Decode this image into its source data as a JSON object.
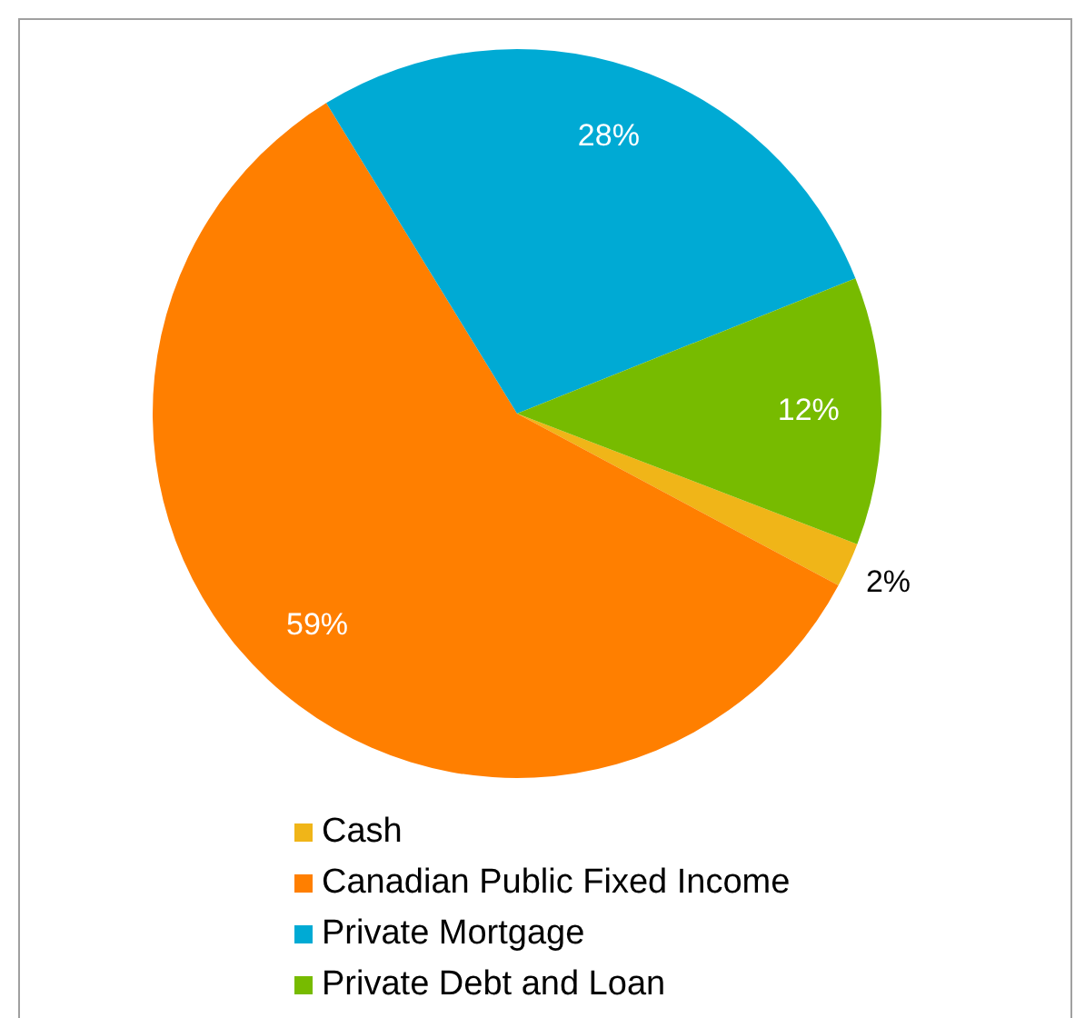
{
  "chart_data": {
    "type": "pie",
    "categories": [
      "Cash",
      "Canadian Public Fixed Income",
      "Private Mortgage",
      "Private Debt and Loan"
    ],
    "values": [
      2,
      59,
      28,
      12
    ],
    "colors": [
      "#f0b518",
      "#ff7f00",
      "#00aad4",
      "#77bb00"
    ],
    "value_labels": [
      "2%",
      "59%",
      "28%",
      "12%"
    ],
    "legend": "bottom"
  }
}
